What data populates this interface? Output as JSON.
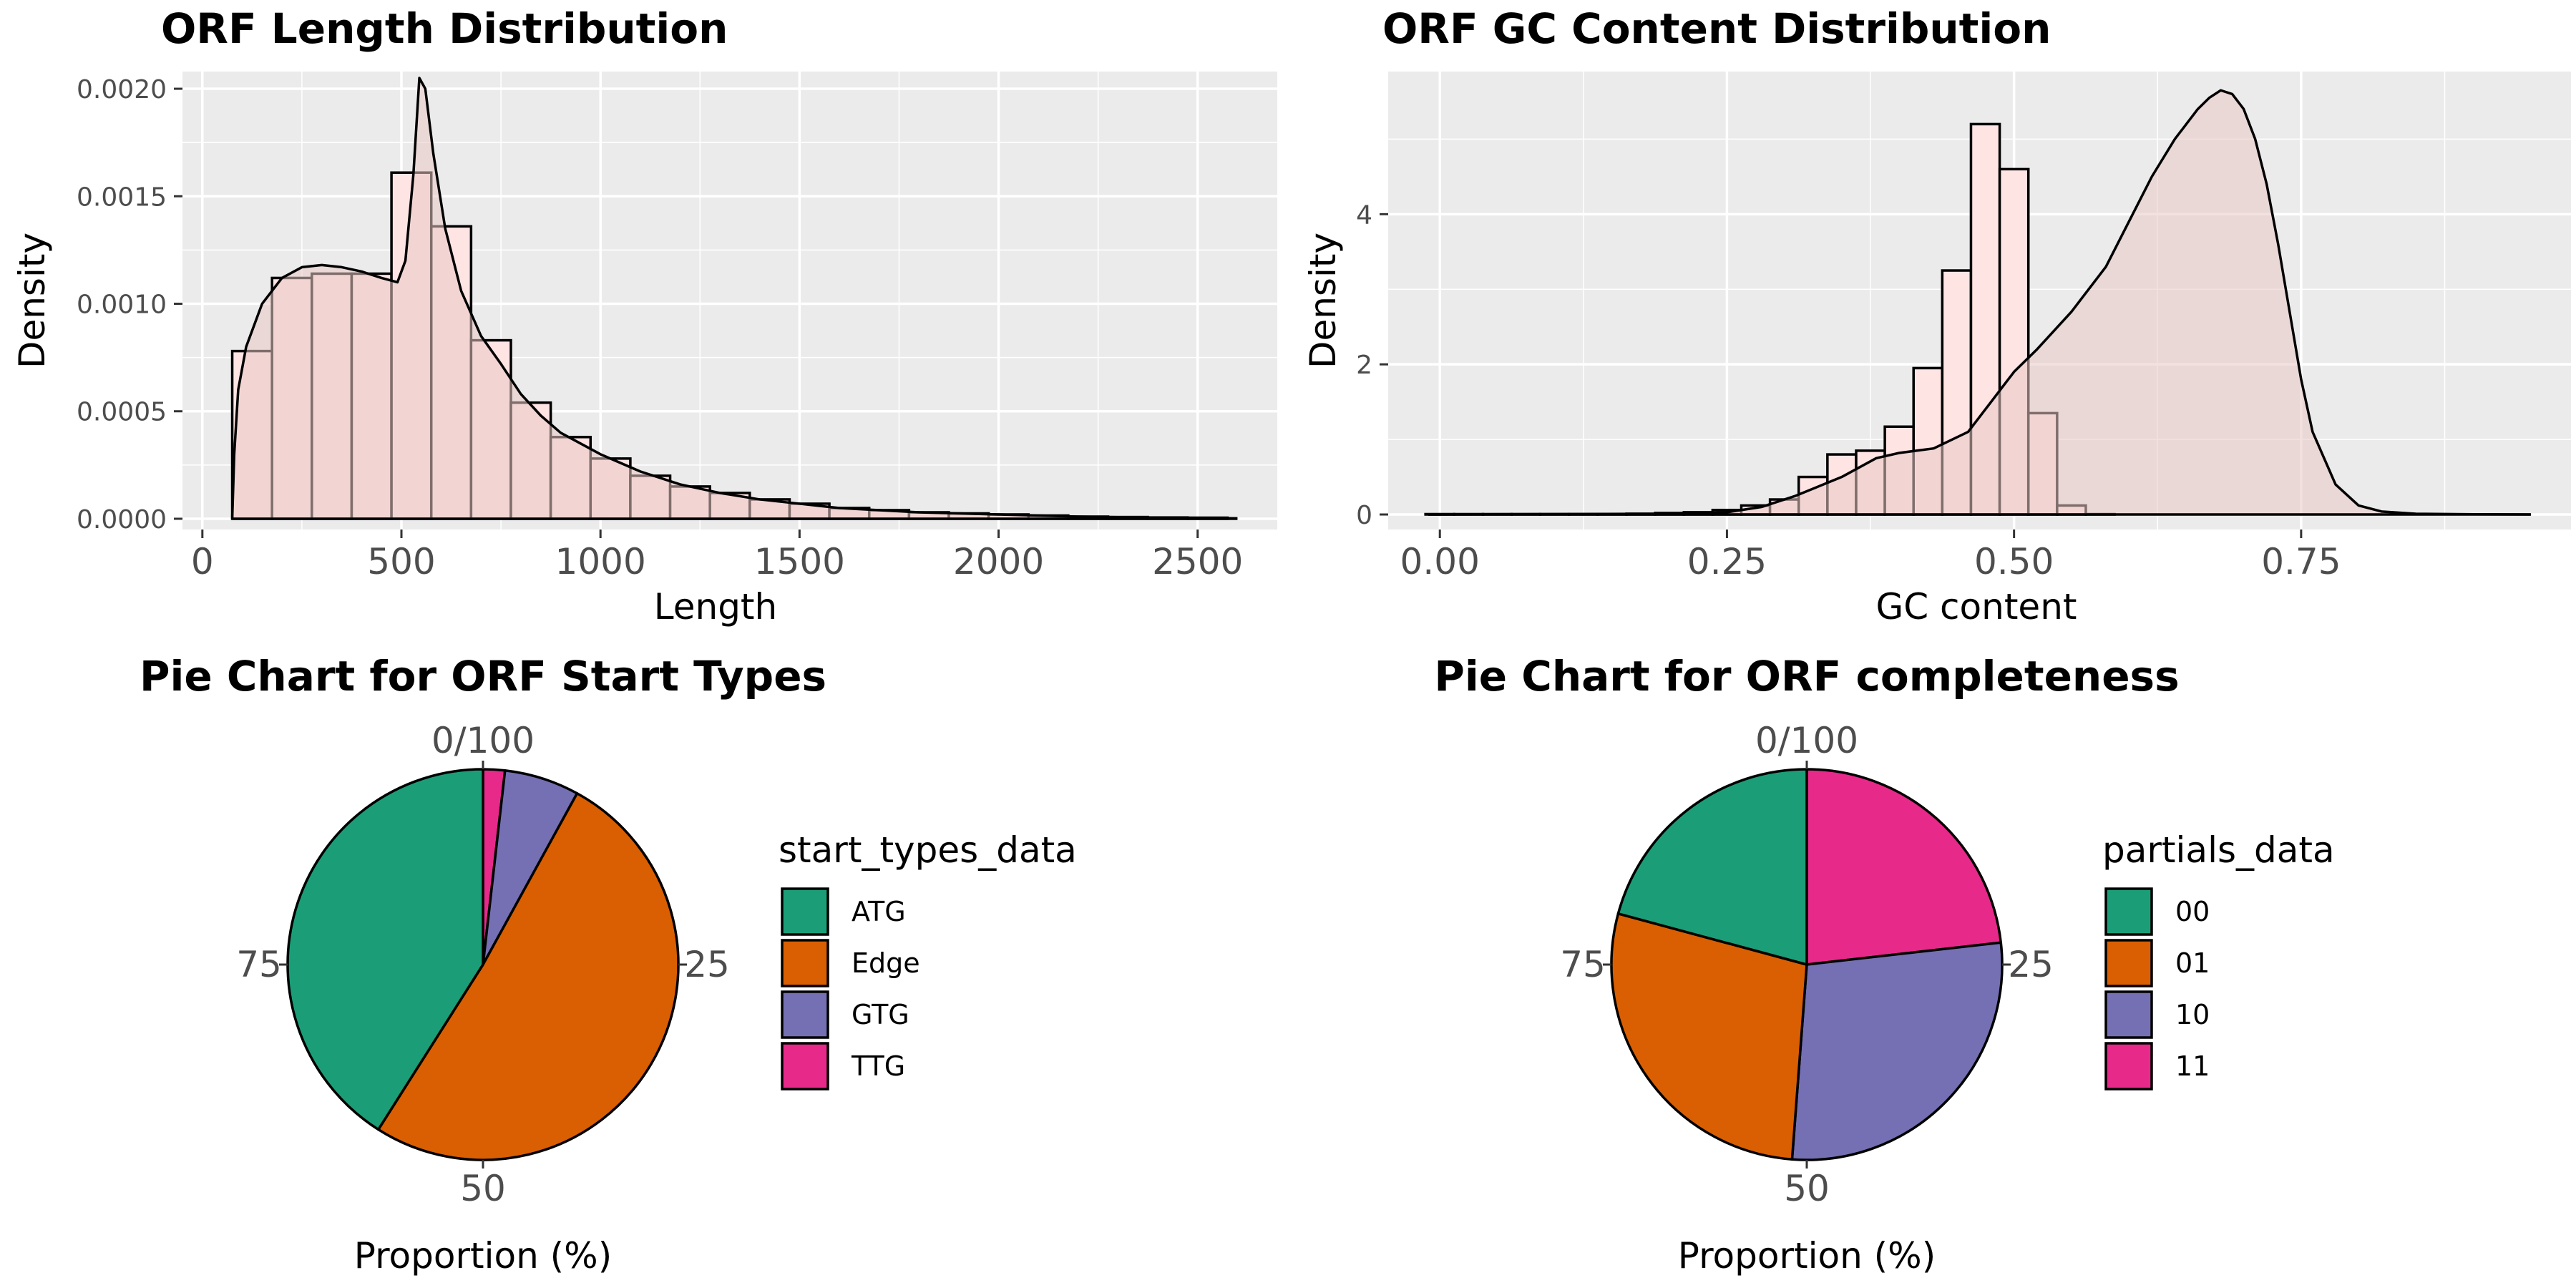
{
  "colors": {
    "panel_bg": "#ebebeb",
    "grid": "#ffffff",
    "hist_fill": "#ffe4e4",
    "density_fill": "#e8c8c4",
    "outline": "#000000",
    "tick_text": "#4d4d4d"
  },
  "chart_data": [
    {
      "type": "histogram",
      "title": "ORF Length Distribution",
      "xlabel": "Length",
      "ylabel": "Density",
      "xlim": [
        -50,
        2700
      ],
      "ylim": [
        -5e-05,
        0.00208
      ],
      "x_ticks": [
        0,
        500,
        1000,
        1500,
        2000,
        2500
      ],
      "x_tick_labels": [
        "0",
        "500",
        "1000",
        "1500",
        "2000",
        "2500"
      ],
      "y_ticks": [
        0,
        0.0005,
        0.001,
        0.0015,
        0.002
      ],
      "y_tick_labels": [
        "0.0000",
        "0.0005",
        "0.0010",
        "0.0015",
        "0.0020"
      ],
      "grid": true,
      "bins": [
        {
          "x0": 75,
          "x1": 175,
          "density": 0.00078
        },
        {
          "x0": 175,
          "x1": 275,
          "density": 0.00112
        },
        {
          "x0": 275,
          "x1": 375,
          "density": 0.00114
        },
        {
          "x0": 375,
          "x1": 475,
          "density": 0.00114
        },
        {
          "x0": 475,
          "x1": 575,
          "density": 0.00161
        },
        {
          "x0": 575,
          "x1": 675,
          "density": 0.00136
        },
        {
          "x0": 675,
          "x1": 775,
          "density": 0.00083
        },
        {
          "x0": 775,
          "x1": 875,
          "density": 0.00054
        },
        {
          "x0": 875,
          "x1": 975,
          "density": 0.00038
        },
        {
          "x0": 975,
          "x1": 1075,
          "density": 0.00028
        },
        {
          "x0": 1075,
          "x1": 1175,
          "density": 0.0002
        },
        {
          "x0": 1175,
          "x1": 1275,
          "density": 0.00015
        },
        {
          "x0": 1275,
          "x1": 1375,
          "density": 0.00012
        },
        {
          "x0": 1375,
          "x1": 1475,
          "density": 9e-05
        },
        {
          "x0": 1475,
          "x1": 1575,
          "density": 7e-05
        },
        {
          "x0": 1575,
          "x1": 1675,
          "density": 5e-05
        },
        {
          "x0": 1675,
          "x1": 1775,
          "density": 4e-05
        },
        {
          "x0": 1775,
          "x1": 1875,
          "density": 3e-05
        },
        {
          "x0": 1875,
          "x1": 1975,
          "density": 2.5e-05
        },
        {
          "x0": 1975,
          "x1": 2075,
          "density": 2e-05
        },
        {
          "x0": 2075,
          "x1": 2175,
          "density": 1.5e-05
        },
        {
          "x0": 2175,
          "x1": 2275,
          "density": 1e-05
        },
        {
          "x0": 2275,
          "x1": 2375,
          "density": 8e-06
        },
        {
          "x0": 2375,
          "x1": 2475,
          "density": 6e-06
        },
        {
          "x0": 2475,
          "x1": 2575,
          "density": 5e-06
        }
      ],
      "density_curve": {
        "x": [
          75,
          80,
          90,
          110,
          150,
          200,
          250,
          300,
          350,
          400,
          450,
          490,
          510,
          530,
          545,
          560,
          580,
          610,
          650,
          700,
          750,
          800,
          850,
          900,
          1000,
          1100,
          1200,
          1300,
          1400,
          1500,
          1600,
          1700,
          1800,
          1900,
          2000,
          2200,
          2400,
          2600
        ],
        "y": [
          0,
          0.0003,
          0.0006,
          0.0008,
          0.001,
          0.00112,
          0.00117,
          0.00118,
          0.00117,
          0.00115,
          0.00112,
          0.0011,
          0.0012,
          0.0016,
          0.00205,
          0.002,
          0.0017,
          0.00135,
          0.00106,
          0.00085,
          0.00072,
          0.00058,
          0.00048,
          0.0004,
          0.0003,
          0.00022,
          0.00016,
          0.00012,
          9e-05,
          7e-05,
          5e-05,
          4e-05,
          3e-05,
          2.5e-05,
          2e-05,
          1e-05,
          5e-06,
          2e-06
        ]
      }
    },
    {
      "type": "histogram",
      "title": "ORF GC Content Distribution",
      "xlabel": "GC content",
      "ylabel": "Density",
      "xlim": [
        -0.045,
        0.985
      ],
      "ylim": [
        -0.2,
        5.9
      ],
      "x_ticks": [
        0,
        0.25,
        0.5,
        0.75
      ],
      "x_tick_labels": [
        "0.00",
        "0.25",
        "0.50",
        "0.75"
      ],
      "y_ticks": [
        0,
        2,
        4
      ],
      "y_tick_labels": [
        "0",
        "2",
        "4"
      ],
      "grid": true,
      "bins": [
        {
          "x0": -0.0125,
          "x1": 0.0125,
          "density": 0.005
        },
        {
          "x0": 0.0125,
          "x1": 0.0375,
          "density": 0.005
        },
        {
          "x0": 0.0375,
          "x1": 0.0625,
          "density": 0.005
        },
        {
          "x0": 0.0625,
          "x1": 0.0875,
          "density": 0.005
        },
        {
          "x0": 0.0875,
          "x1": 0.1125,
          "density": 0.005
        },
        {
          "x0": 0.1125,
          "x1": 0.1375,
          "density": 0.005
        },
        {
          "x0": 0.1375,
          "x1": 0.1625,
          "density": 0.005
        },
        {
          "x0": 0.1625,
          "x1": 0.1875,
          "density": 0.01
        },
        {
          "x0": 0.1875,
          "x1": 0.2125,
          "density": 0.02
        },
        {
          "x0": 0.2125,
          "x1": 0.2375,
          "density": 0.03
        },
        {
          "x0": 0.2375,
          "x1": 0.2625,
          "density": 0.06
        },
        {
          "x0": 0.2625,
          "x1": 0.2875,
          "density": 0.12
        },
        {
          "x0": 0.2875,
          "x1": 0.3125,
          "density": 0.2
        },
        {
          "x0": 0.3125,
          "x1": 0.3375,
          "density": 0.5
        },
        {
          "x0": 0.3375,
          "x1": 0.3625,
          "density": 0.8
        },
        {
          "x0": 0.3625,
          "x1": 0.3875,
          "density": 0.85
        },
        {
          "x0": 0.3875,
          "x1": 0.4125,
          "density": 1.17
        },
        {
          "x0": 0.4125,
          "x1": 0.4375,
          "density": 1.95
        },
        {
          "x0": 0.4375,
          "x1": 0.4625,
          "density": 3.25
        },
        {
          "x0": 0.4625,
          "x1": 0.4875,
          "density": 5.2
        },
        {
          "x0": 0.4875,
          "x1": 0.5125,
          "density": 4.6
        },
        {
          "x0": 0.5125,
          "x1": 0.5375,
          "density": 1.35
        },
        {
          "x0": 0.5375,
          "x1": 0.5625,
          "density": 0.12
        },
        {
          "x0": 0.5625,
          "x1": 0.5875,
          "density": 0.005
        }
      ],
      "density_curve": {
        "x": [
          -0.01,
          0.2,
          0.25,
          0.28,
          0.31,
          0.35,
          0.38,
          0.4,
          0.43,
          0.46,
          0.48,
          0.5,
          0.52,
          0.55,
          0.58,
          0.6,
          0.62,
          0.64,
          0.66,
          0.67,
          0.68,
          0.69,
          0.7,
          0.71,
          0.72,
          0.73,
          0.74,
          0.75,
          0.76,
          0.78,
          0.8,
          0.82,
          0.85,
          0.9,
          0.95
        ],
        "y": [
          0,
          0.01,
          0.03,
          0.1,
          0.25,
          0.5,
          0.75,
          0.82,
          0.88,
          1.1,
          1.5,
          1.9,
          2.2,
          2.7,
          3.3,
          3.9,
          4.5,
          5.0,
          5.4,
          5.55,
          5.65,
          5.6,
          5.4,
          5.0,
          4.4,
          3.6,
          2.7,
          1.8,
          1.1,
          0.4,
          0.12,
          0.04,
          0.01,
          0.002,
          0
        ]
      }
    },
    {
      "type": "pie",
      "title": "Pie Chart for ORF Start Types",
      "xlabel": "Proportion (%)",
      "angle_ticks": [
        0,
        25,
        50,
        75
      ],
      "angle_tick_labels": [
        "0/100",
        "25",
        "50",
        "75"
      ],
      "legend_title": "start_types_data",
      "legend_position": "right",
      "slices": [
        {
          "label": "TTG",
          "value": 1.8,
          "color": "#e7298a"
        },
        {
          "label": "GTG",
          "value": 6.2,
          "color": "#7570b3"
        },
        {
          "label": "Edge",
          "value": 51.0,
          "color": "#d95f02"
        },
        {
          "label": "ATG",
          "value": 41.0,
          "color": "#1b9e77"
        }
      ],
      "legend_items": [
        {
          "label": "ATG",
          "color": "#1b9e77"
        },
        {
          "label": "Edge",
          "color": "#d95f02"
        },
        {
          "label": "GTG",
          "color": "#7570b3"
        },
        {
          "label": "TTG",
          "color": "#e7298a"
        }
      ]
    },
    {
      "type": "pie",
      "title": "Pie Chart for ORF completeness",
      "xlabel": "Proportion (%)",
      "angle_ticks": [
        0,
        25,
        50,
        75
      ],
      "angle_tick_labels": [
        "0/100",
        "25",
        "50",
        "75"
      ],
      "legend_title": "partials_data",
      "legend_position": "right",
      "slices": [
        {
          "label": "11",
          "value": 23.2,
          "color": "#e7298a"
        },
        {
          "label": "10",
          "value": 28.0,
          "color": "#7570b3"
        },
        {
          "label": "01",
          "value": 28.0,
          "color": "#d95f02"
        },
        {
          "label": "00",
          "value": 20.8,
          "color": "#1b9e77"
        }
      ],
      "legend_items": [
        {
          "label": "00",
          "color": "#1b9e77"
        },
        {
          "label": "01",
          "color": "#d95f02"
        },
        {
          "label": "10",
          "color": "#7570b3"
        },
        {
          "label": "11",
          "color": "#e7298a"
        }
      ]
    }
  ]
}
